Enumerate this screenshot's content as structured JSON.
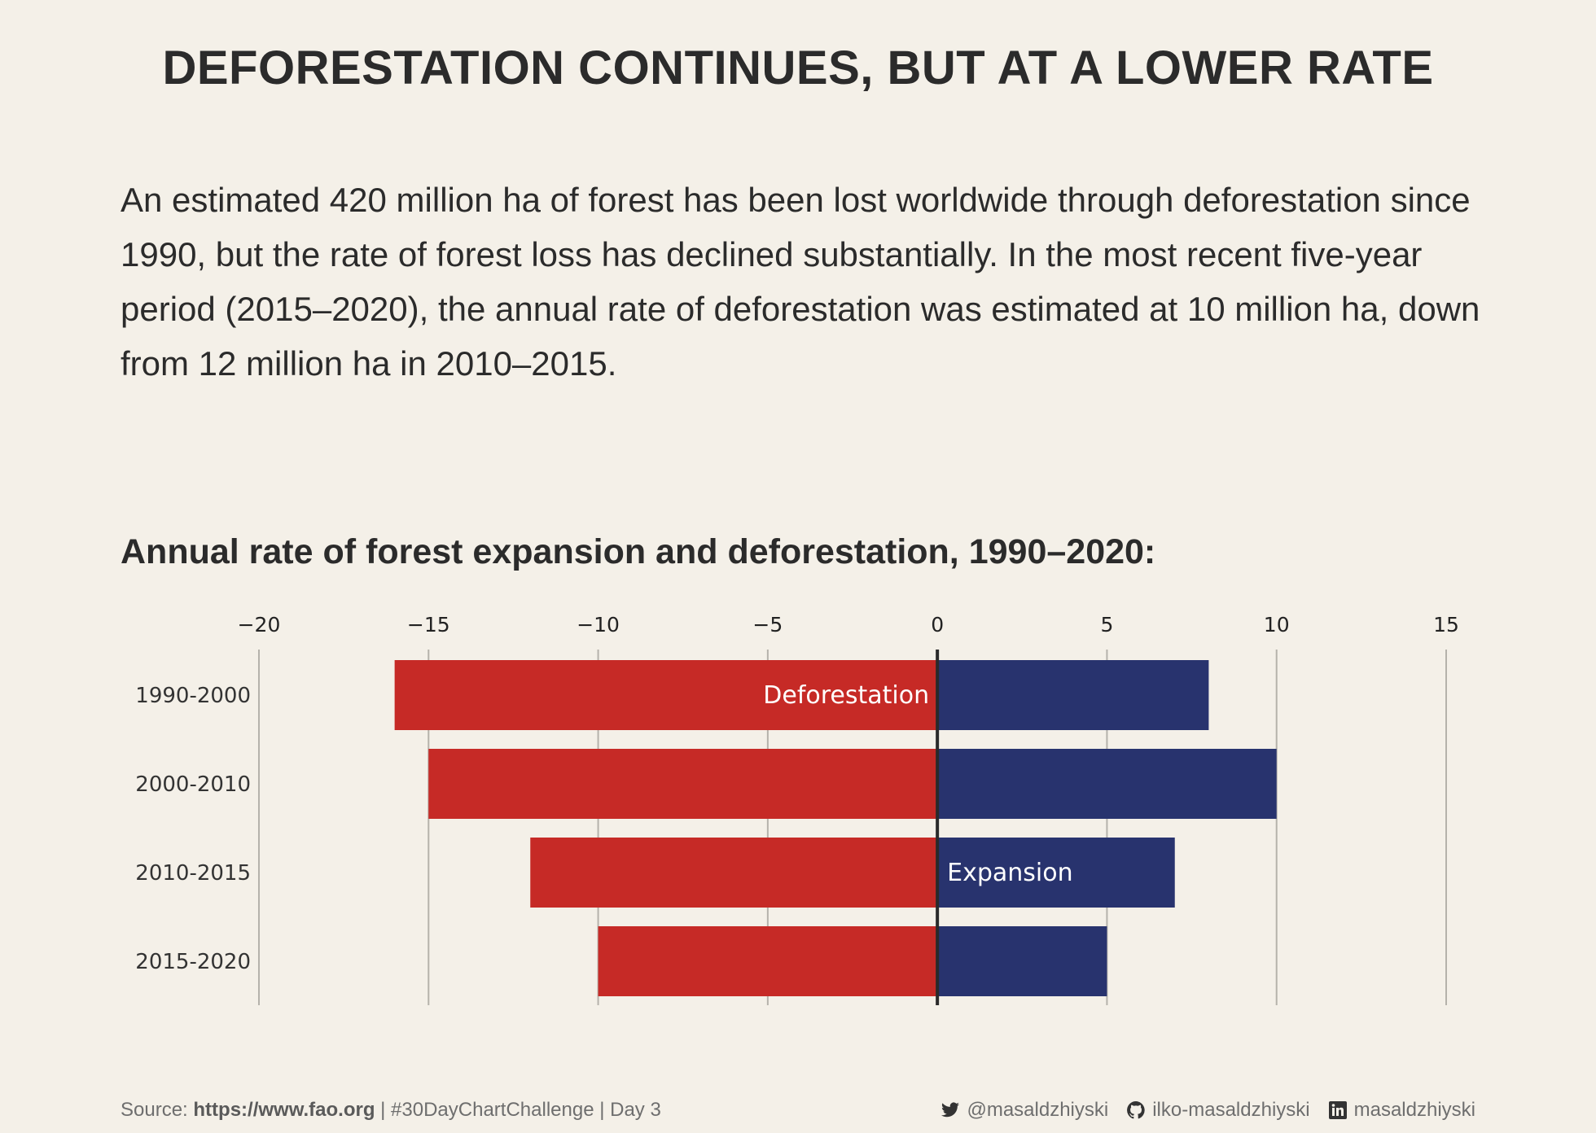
{
  "header": {
    "title": "DEFORESTATION CONTINUES, BUT AT A LOWER RATE",
    "description": "An estimated 420 million ha of forest has been lost worldwide through deforestation since 1990, but the rate of forest loss has declined substantially. In the most recent five-year period (2015–2020), the annual rate of deforestation was estimated at 10 million ha, down from 12 million ha in 2010–2015.",
    "subtitle": "Annual rate of forest expansion and deforestation, 1990–2020:"
  },
  "chart_data": {
    "type": "bar",
    "orientation": "horizontal-diverging",
    "categories": [
      "1990-2000",
      "2000-2010",
      "2010-2015",
      "2015-2020"
    ],
    "series": [
      {
        "name": "Deforestation",
        "values": [
          -16,
          -15,
          -12,
          -10
        ],
        "color": "#c62a26"
      },
      {
        "name": "Expansion",
        "values": [
          8,
          10,
          7,
          5
        ],
        "color": "#28336e"
      }
    ],
    "xlim": [
      -20,
      15
    ],
    "xticks": [
      -20,
      -15,
      -10,
      -5,
      0,
      5,
      10,
      15
    ],
    "xtick_labels": [
      "−20",
      "−15",
      "−10",
      "−5",
      "0",
      "5",
      "10",
      "15"
    ],
    "grid": "vertical",
    "series_label_placement": "inside bars"
  },
  "footer": {
    "source_prefix": "Source: ",
    "source_url": "https://www.fao.org",
    "source_suffix": " | #30DayChartChallenge | Day 3",
    "twitter": "@masaldzhiyski",
    "github": "ilko-masaldzhiyski",
    "linkedin": "masaldzhiyski"
  }
}
